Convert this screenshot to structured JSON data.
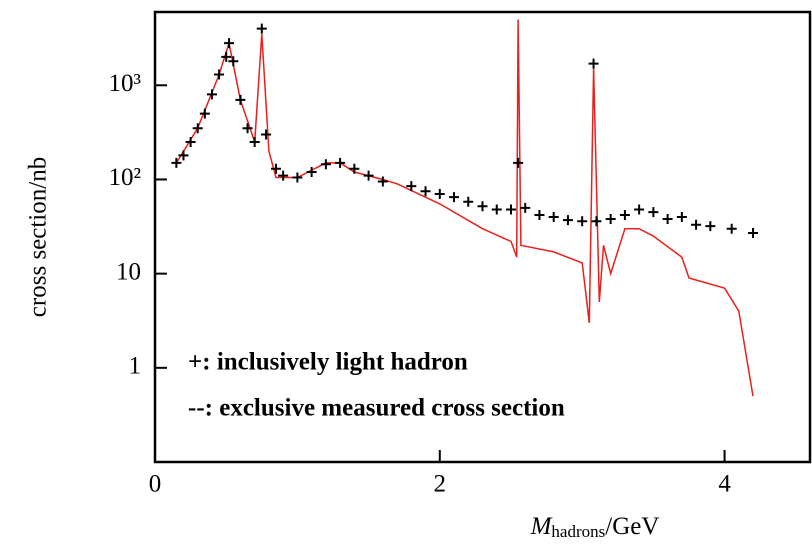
{
  "chart_data": {
    "type": "scatter_line",
    "y_label": "cross section/nb",
    "x_label": {
      "symbol": "M",
      "subscript": "hadrons",
      "rest": "/GeV"
    },
    "xlim": [
      0,
      4.6
    ],
    "xticks": [
      0,
      2,
      4
    ],
    "ylim": [
      0.1,
      6000
    ],
    "log_y": true,
    "yticks": [
      1,
      10,
      {
        "value": 100,
        "label": "10²"
      },
      {
        "value": 1000,
        "label": "10³"
      }
    ],
    "series": [
      {
        "name": "+: inclusively light hadron",
        "kind": "marker",
        "color": "#000000",
        "x": [
          0.15,
          0.2,
          0.25,
          0.3,
          0.35,
          0.4,
          0.45,
          0.5,
          0.52,
          0.55,
          0.6,
          0.65,
          0.7,
          0.75,
          0.78,
          0.85,
          0.9,
          1.0,
          1.1,
          1.2,
          1.3,
          1.4,
          1.5,
          1.6,
          1.8,
          1.9,
          2.0,
          2.1,
          2.2,
          2.3,
          2.4,
          2.5,
          2.55,
          2.6,
          2.7,
          2.8,
          2.9,
          3.0,
          3.08,
          3.1,
          3.2,
          3.3,
          3.4,
          3.5,
          3.6,
          3.7,
          3.8,
          3.9,
          4.05,
          4.2
        ],
        "values": [
          150,
          180,
          250,
          350,
          500,
          800,
          1300,
          2000,
          2800,
          1800,
          700,
          350,
          250,
          4000,
          300,
          130,
          110,
          105,
          120,
          145,
          150,
          130,
          110,
          95,
          85,
          75,
          70,
          65,
          58,
          52,
          48,
          48,
          150,
          50,
          42,
          40,
          37,
          36,
          1700,
          36,
          38,
          42,
          48,
          45,
          38,
          40,
          33,
          32,
          30,
          27
        ]
      },
      {
        "name": "--: exclusive measured cross section",
        "kind": "line",
        "color": "#e8201c",
        "x": [
          0.15,
          0.3,
          0.45,
          0.52,
          0.6,
          0.7,
          0.75,
          0.8,
          0.85,
          1.0,
          1.2,
          1.3,
          1.4,
          1.6,
          1.7,
          2.0,
          2.3,
          2.5,
          2.54,
          2.55,
          2.57,
          2.8,
          3.0,
          3.05,
          3.08,
          3.12,
          3.15,
          3.2,
          3.3,
          3.4,
          3.5,
          3.7,
          3.75,
          4.0,
          4.1,
          4.2
        ],
        "values": [
          150,
          350,
          1300,
          2800,
          700,
          250,
          3500,
          200,
          105,
          105,
          150,
          150,
          120,
          100,
          90,
          55,
          30,
          22,
          15,
          5000,
          20,
          17,
          13,
          3,
          1500,
          5,
          20,
          10,
          30,
          30,
          25,
          15,
          9,
          7,
          4,
          0.5
        ]
      }
    ]
  }
}
